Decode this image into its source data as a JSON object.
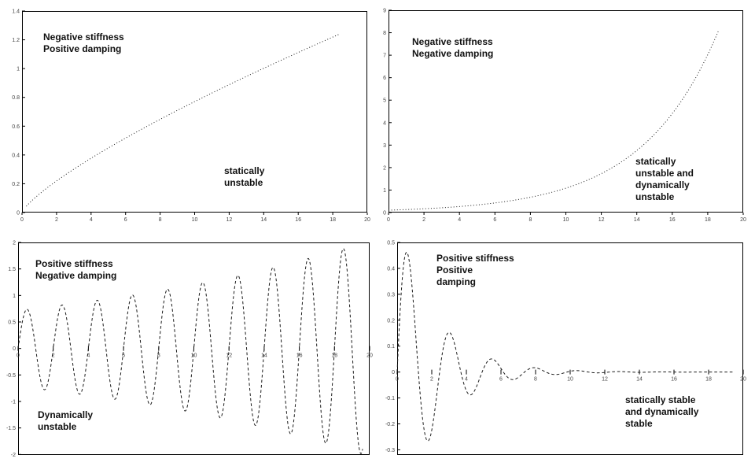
{
  "figure": {
    "kind": "stability-quadrant-figure",
    "background": "#ffffff",
    "curve_color": "#1a1a1a",
    "axis_color": "#000000",
    "tick_label_color": "#444444"
  },
  "chart_data": [
    {
      "id": "negative-stiffness-positive-damping",
      "type": "line",
      "title": "",
      "xlabel": "",
      "ylabel": "",
      "legend": null,
      "grid": false,
      "xlim": [
        0,
        20
      ],
      "ylim": [
        0,
        1.4
      ],
      "xticks": [
        0,
        2,
        4,
        6,
        8,
        10,
        12,
        14,
        16,
        18,
        20
      ],
      "yticks": [
        0,
        0.2,
        0.4,
        0.6,
        0.8,
        1,
        1.2,
        1.4
      ],
      "x_axis_position": "bottom",
      "line_style": "dotted",
      "curve": {
        "kind": "power",
        "amplitude": 1.24,
        "exponent": 0.78,
        "x_ref": 18.4,
        "x_start": 0.25,
        "x_end": 18.4
      },
      "description": "monotonic near-linear divergence of displacement with time",
      "labels": {
        "condition": "Negative stiffness\nPositive damping",
        "stability": "statically\nunstable"
      }
    },
    {
      "id": "negative-stiffness-negative-damping",
      "type": "line",
      "title": "",
      "xlabel": "",
      "ylabel": "",
      "legend": null,
      "grid": false,
      "xlim": [
        0,
        20
      ],
      "ylim": [
        0,
        9
      ],
      "xticks": [
        0,
        2,
        4,
        6,
        8,
        10,
        12,
        14,
        16,
        18,
        20
      ],
      "yticks": [
        0,
        1,
        2,
        3,
        4,
        5,
        6,
        7,
        8,
        9
      ],
      "x_axis_position": "bottom",
      "line_style": "dotted",
      "curve": {
        "kind": "exp",
        "y0": 0.105,
        "k": 0.2335,
        "x_start": 0,
        "x_end": 18.6
      },
      "description": "exponentially growing divergence",
      "labels": {
        "condition": "Negative stiffness\nNegative damping",
        "stability": "statically\nunstable and\ndynamically\nunstable"
      }
    },
    {
      "id": "positive-stiffness-negative-damping",
      "type": "line",
      "title": "",
      "xlabel": "",
      "ylabel": "",
      "legend": null,
      "grid": false,
      "xlim": [
        0,
        20
      ],
      "ylim": [
        -2.01,
        2.0
      ],
      "xticks": [
        0,
        2,
        4,
        6,
        8,
        10,
        12,
        14,
        16,
        18,
        20
      ],
      "yticks": [
        2,
        1.5,
        1,
        0.5,
        0,
        -0.5,
        -1,
        -1.5,
        -2
      ],
      "x_axis_position": "origin",
      "line_style": "dashed",
      "curve": {
        "kind": "growing_sine",
        "a": 0.72,
        "g": 0.052,
        "w": 3.14159,
        "x_start": 0,
        "x_end": 19.6
      },
      "description": "oscillation with exponentially growing amplitude, period 2",
      "labels": {
        "condition": "Positive stiffness\nNegative damping",
        "stability": "Dynamically\nunstable"
      }
    },
    {
      "id": "positive-stiffness-positive-damping",
      "type": "line",
      "title": "",
      "xlabel": "",
      "ylabel": "",
      "legend": null,
      "grid": false,
      "xlim": [
        0,
        20
      ],
      "ylim": [
        -0.32,
        0.5
      ],
      "xticks": [
        0,
        2,
        4,
        6,
        8,
        10,
        12,
        14,
        16,
        18,
        20
      ],
      "yticks": [
        0.5,
        0.4,
        0.3,
        0.2,
        0.1,
        0,
        -0.1,
        -0.2,
        -0.3
      ],
      "x_axis_position": "origin",
      "line_style": "dashed",
      "curve": {
        "kind": "damped_sine",
        "a": 0.6,
        "d": 0.45,
        "w": 2.56,
        "x_start": 0,
        "x_end": 19.5
      },
      "description": "damped oscillation decaying to zero",
      "labels": {
        "condition": "Positive stiffness\nPositive\ndamping",
        "stability": "statically stable\nand dynamically\nstable"
      }
    }
  ]
}
